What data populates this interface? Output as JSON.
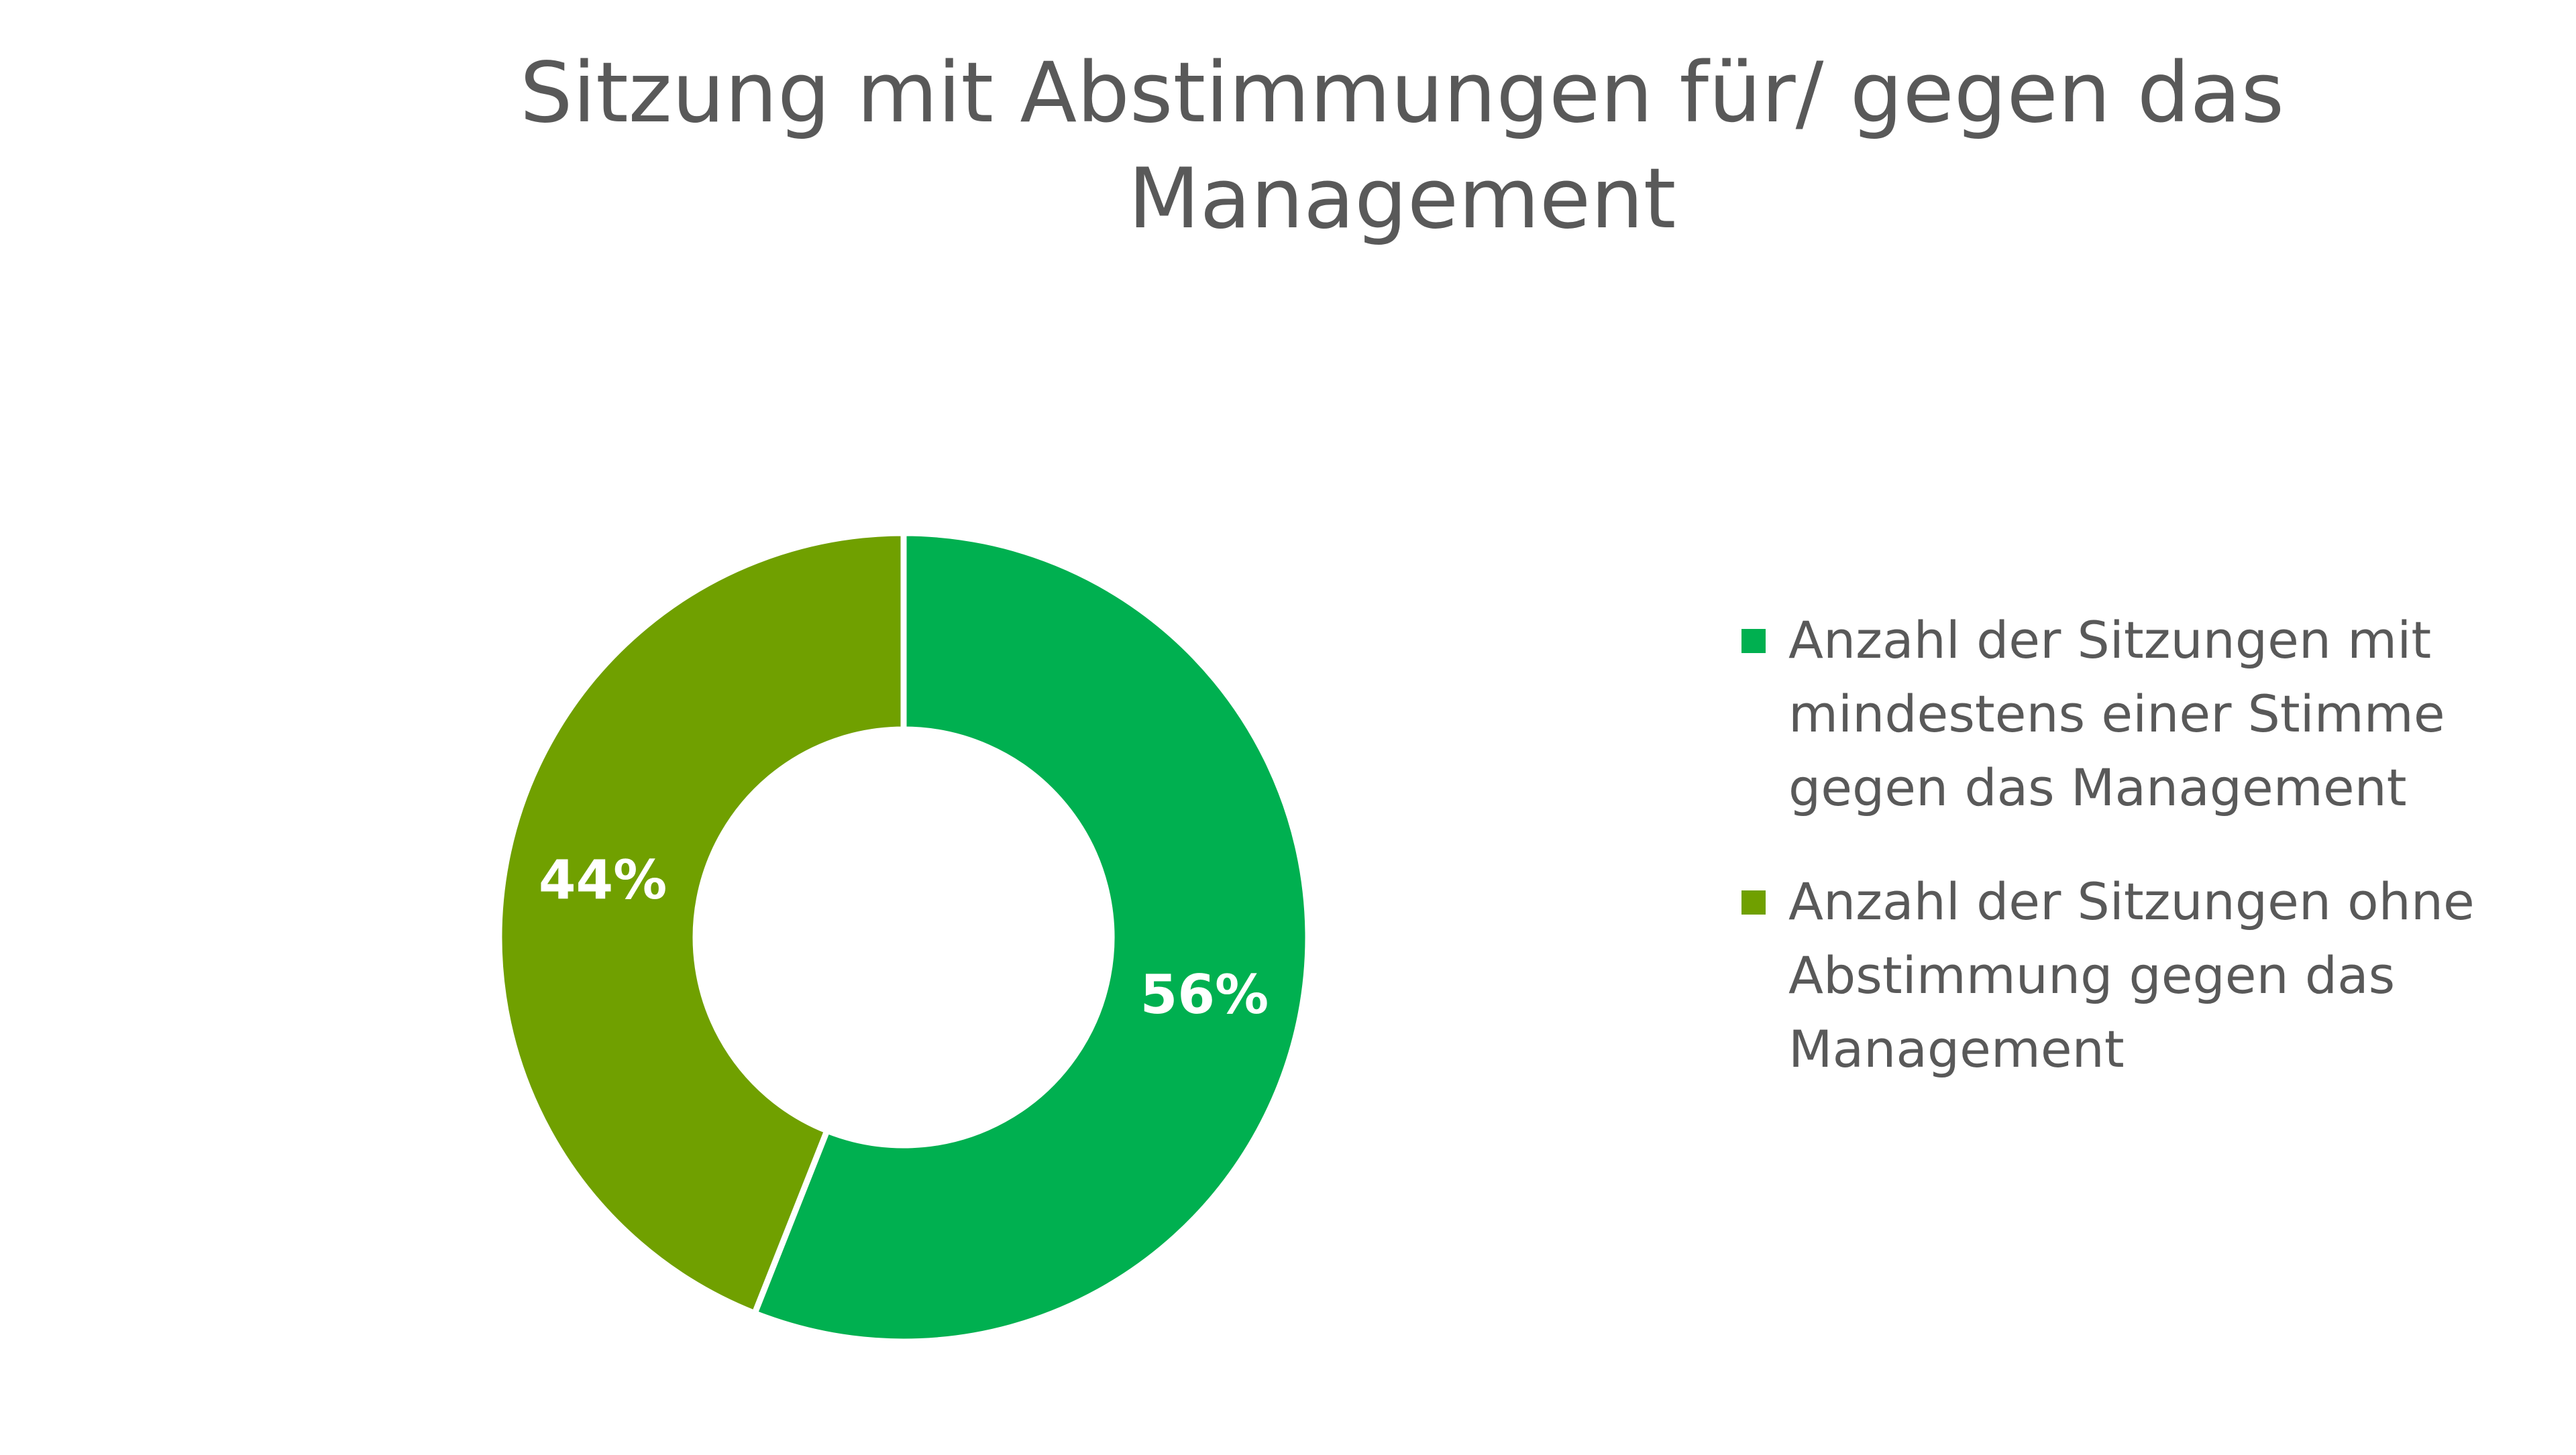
{
  "chart_data": {
    "type": "pie",
    "variant": "donut",
    "title_lines": [
      "Sitzung mit Abstimmungen für/ gegen das",
      "Management"
    ],
    "series": [
      {
        "name": "Anzahl der Sitzungen mit mindestens einer Stimme gegen das Management",
        "name_lines": [
          "Anzahl der Sitzungen mit",
          "mindestens einer Stimme",
          "gegen das Management"
        ],
        "value": 56,
        "label": "56%",
        "color": "#00B050"
      },
      {
        "name": "Anzahl der Sitzungen ohne Abstimmung gegen das Management",
        "name_lines": [
          "Anzahl der Sitzungen ohne",
          "Abstimmung gegen das",
          "Management"
        ],
        "value": 44,
        "label": "44%",
        "color": "#70A000"
      }
    ],
    "legend_position": "right"
  }
}
